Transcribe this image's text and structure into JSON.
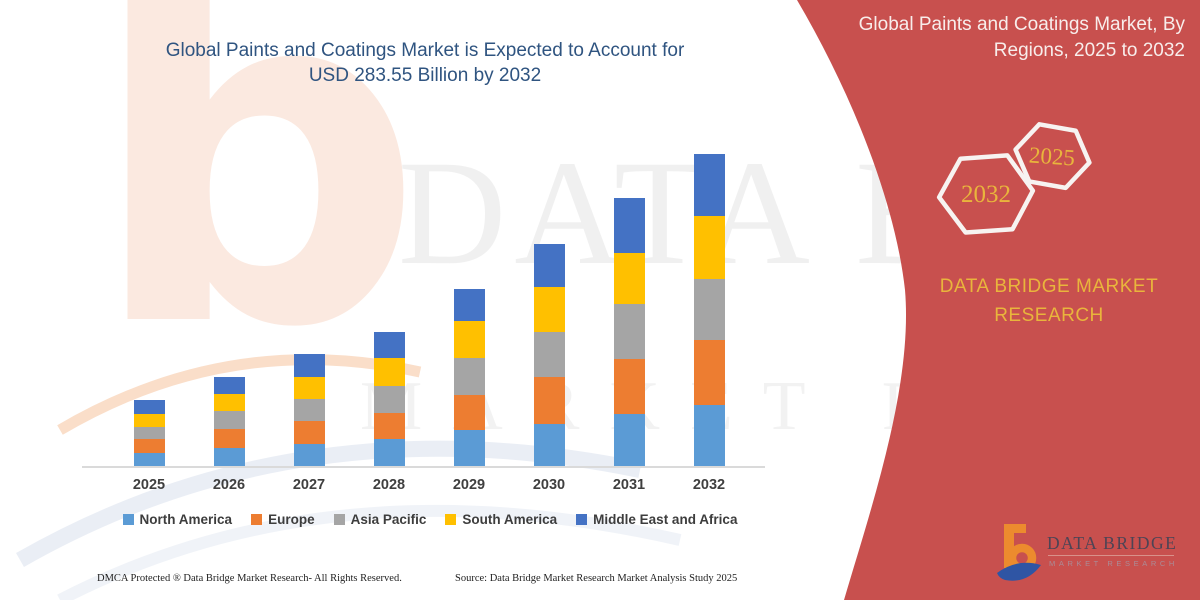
{
  "left": {
    "title_lines": [
      "Global Paints and Coatings Market is Expected to Account for",
      "USD 283.55 Billion by 2032"
    ]
  },
  "chart_data": {
    "type": "bar",
    "stacked": true,
    "title": "Global Paints and Coatings Market is Expected to Account for USD 283.55 Billion by 2032",
    "xlabel": "",
    "ylabel": "",
    "units": "USD Billion",
    "grid": false,
    "legend_position": "bottom",
    "ylim": [
      0,
      300
    ],
    "categories": [
      "2025",
      "2026",
      "2027",
      "2028",
      "2029",
      "2030",
      "2031",
      "2032"
    ],
    "series": [
      {
        "name": "North America",
        "color": "#5B9BD5",
        "values": [
          11.8,
          16.4,
          20.0,
          25.0,
          32.7,
          38.6,
          47.3,
          55.9
        ]
      },
      {
        "name": "Europe",
        "color": "#ED7D31",
        "values": [
          12.7,
          17.3,
          20.9,
          23.6,
          31.8,
          42.3,
          50.4,
          58.6
        ]
      },
      {
        "name": "Asia Pacific",
        "color": "#A5A5A5",
        "values": [
          10.9,
          16.4,
          20.0,
          24.1,
          34.1,
          41.3,
          50.0,
          55.9
        ]
      },
      {
        "name": "South America",
        "color": "#FFC000",
        "values": [
          12.3,
          15.9,
          20.0,
          25.4,
          33.2,
          40.4,
          45.9,
          56.8
        ]
      },
      {
        "name": "Middle East and Africa",
        "color": "#4472C4",
        "values": [
          12.3,
          15.0,
          20.9,
          23.6,
          29.5,
          39.5,
          50.0,
          56.4
        ]
      }
    ],
    "totals": [
      60.0,
      81.0,
      101.8,
      121.7,
      161.3,
      202.1,
      243.6,
      283.55
    ]
  },
  "right_panel": {
    "title_lines": [
      "Global Paints and Coatings Market, By",
      "Regions, 2025 to 2032"
    ],
    "hexagons": [
      {
        "label": "2032"
      },
      {
        "label": "2025"
      }
    ],
    "brand_text": "DATA BRIDGE MARKET RESEARCH",
    "colors": {
      "panel": "#C8504E",
      "gold": "#E9B53C"
    }
  },
  "logo": {
    "name": "DATA BRIDGE",
    "tagline": "MARKET RESEARCH"
  },
  "watermark": {
    "glyph": "b",
    "line1": "DATA BRIDGE",
    "line2": "MARKET RESEARCH"
  },
  "footer": {
    "left": "DMCA Protected ® Data Bridge Market Research- All Rights Reserved.",
    "right": "Source: Data Bridge Market Research Market Analysis Study 2025"
  }
}
